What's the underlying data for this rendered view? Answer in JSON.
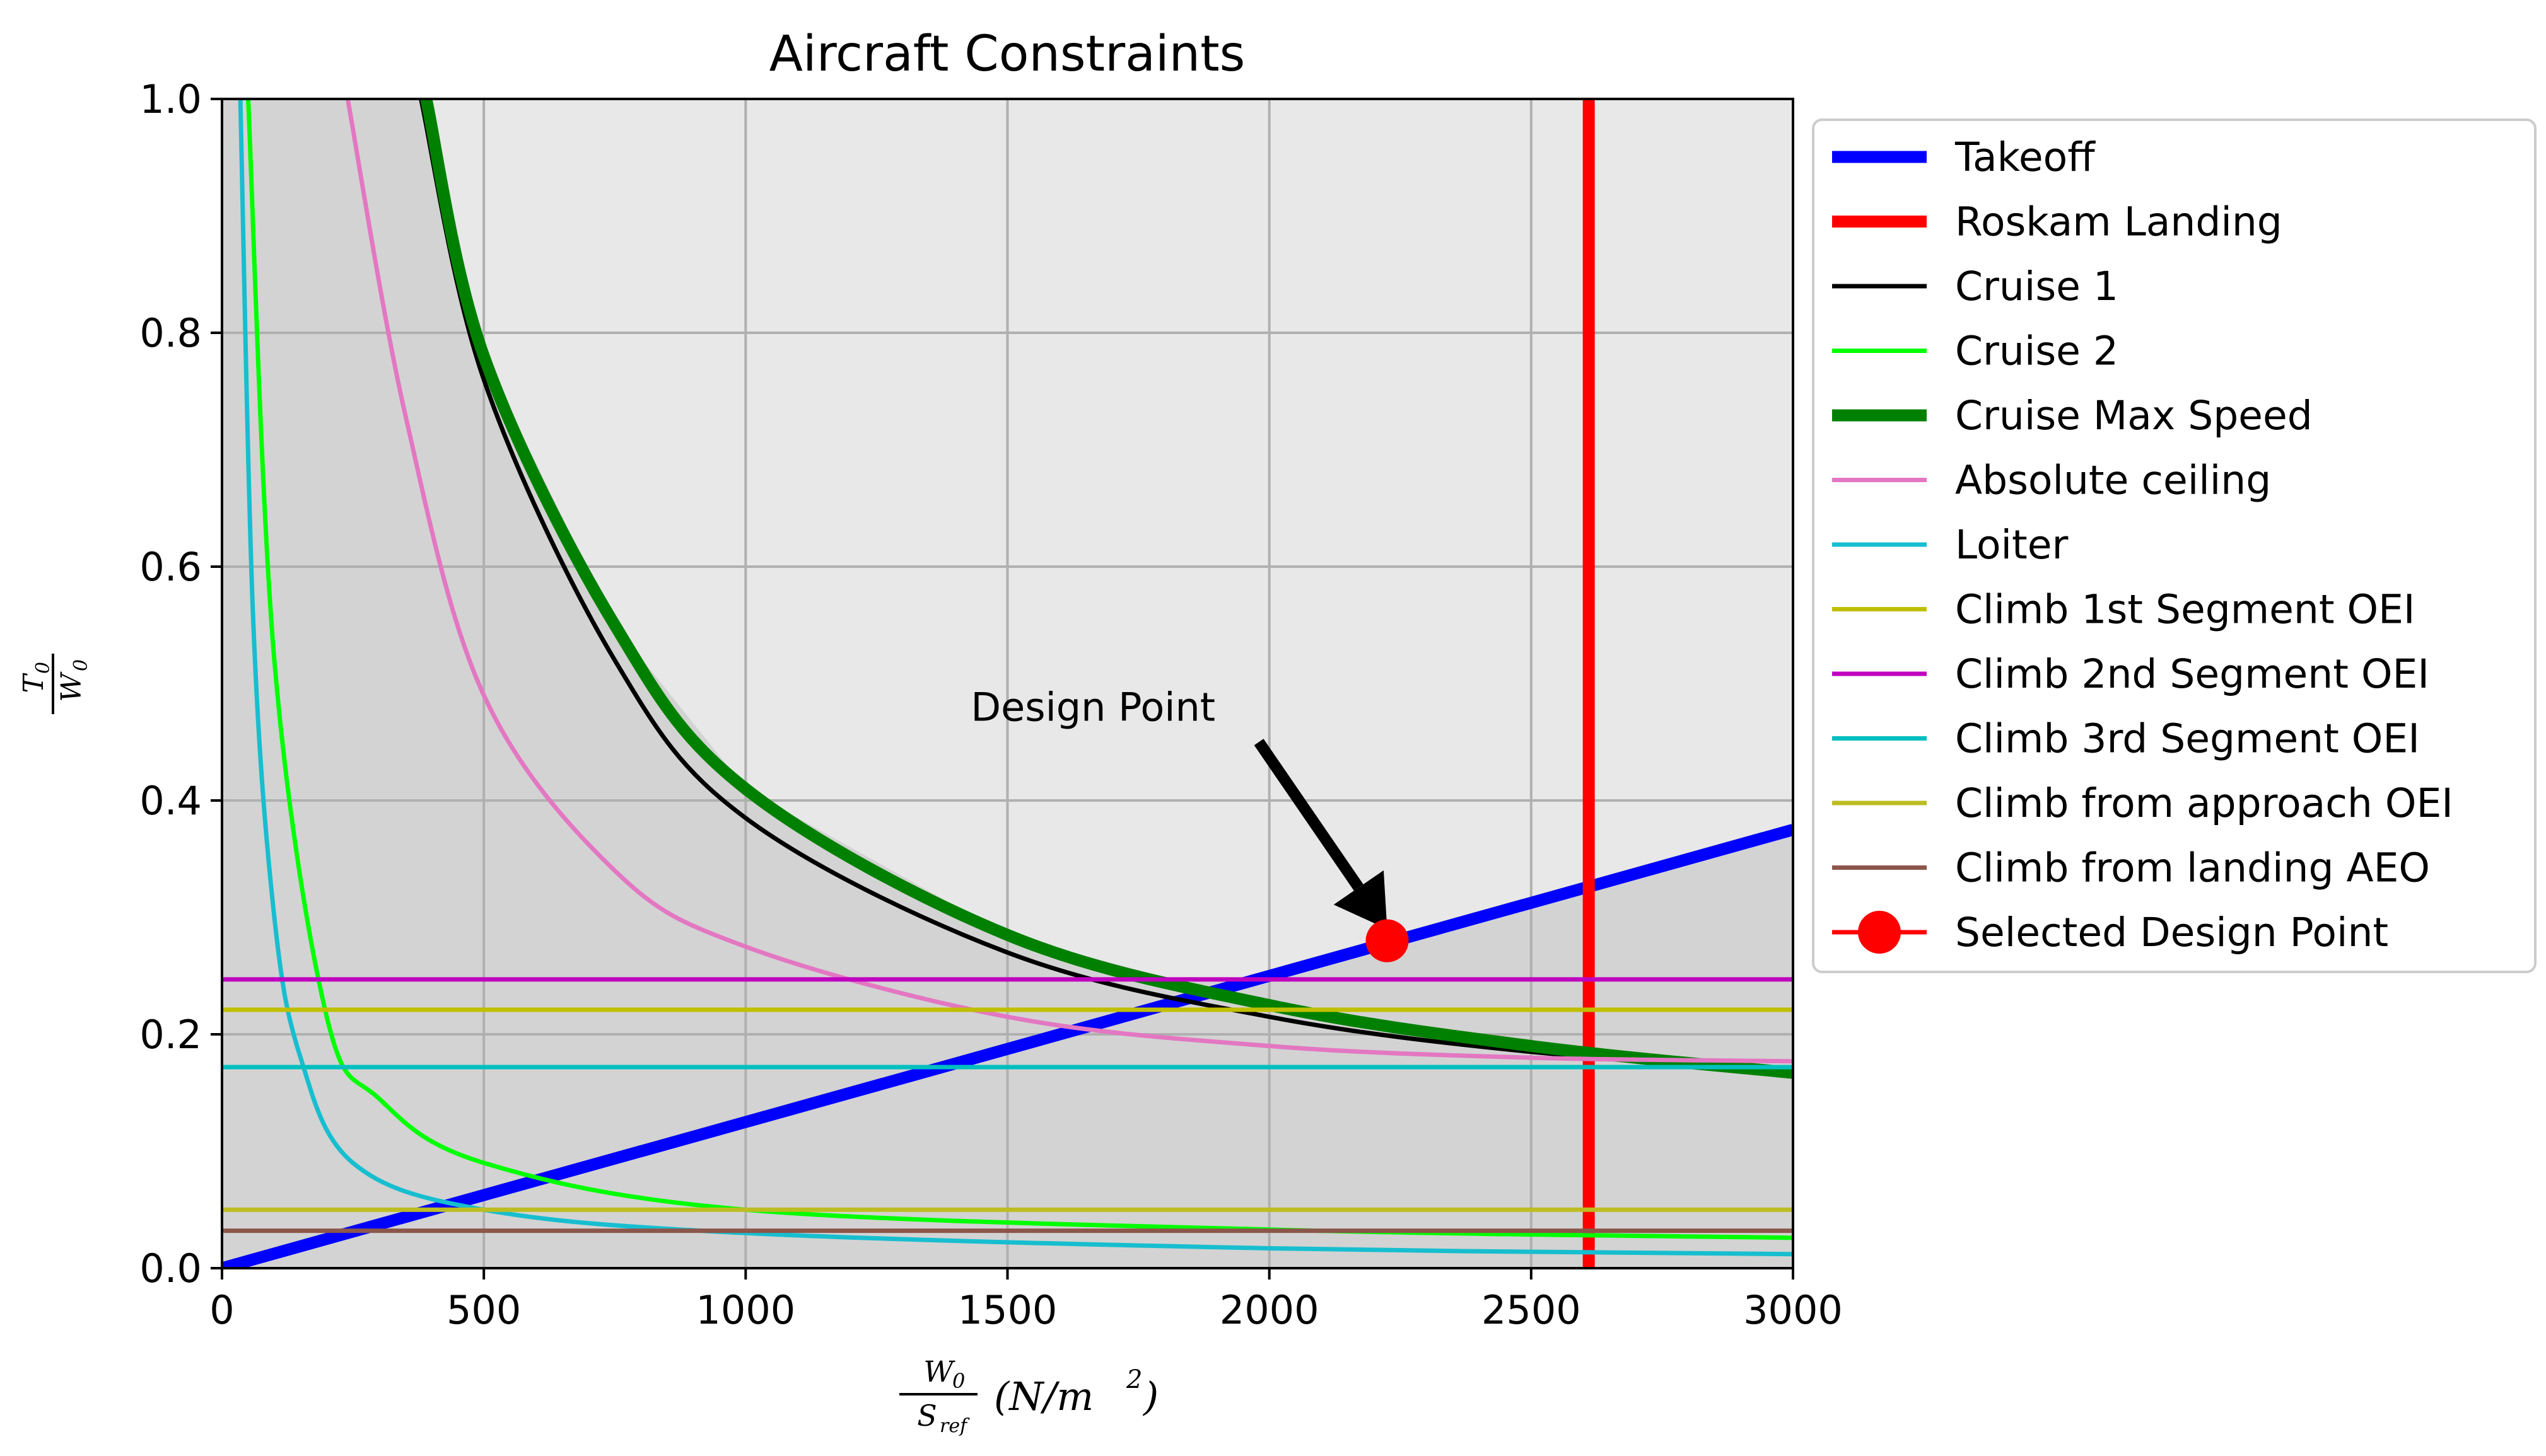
{
  "chart_data": {
    "type": "line",
    "title": "Aircraft Constraints",
    "xlabel": {
      "num": "W",
      "num_sub": "0",
      "den": "S",
      "den_sub": "ref",
      "unit_pre": "(N/m",
      "unit_sup": "2",
      "unit_post": ")"
    },
    "ylabel": {
      "num": "T",
      "num_sub": "0",
      "den": "W",
      "den_sub": "0"
    },
    "xlim": [
      0,
      3000
    ],
    "ylim": [
      0,
      1.0
    ],
    "xticks": [
      "0",
      "500",
      "1000",
      "1500",
      "2000",
      "2500",
      "3000"
    ],
    "yticks": [
      "0.0",
      "0.2",
      "0.4",
      "0.6",
      "0.8",
      "1.0"
    ],
    "grid": true,
    "legend_position": "outside-right",
    "series": [
      {
        "name": "Takeoff",
        "color": "#0000ff",
        "width": "thick",
        "kind": "linear",
        "points": [
          [
            0,
            0.0
          ],
          [
            3000,
            0.375
          ]
        ]
      },
      {
        "name": "Roskam Landing",
        "color": "#ff0000",
        "width": "thick",
        "kind": "vertical",
        "x": 2610
      },
      {
        "name": "Cruise 1",
        "color": "#000000",
        "width": "normal",
        "kind": "curve",
        "points": [
          [
            380,
            1.0
          ],
          [
            500,
            0.76
          ],
          [
            750,
            0.52
          ],
          [
            1000,
            0.385
          ],
          [
            1500,
            0.27
          ],
          [
            2000,
            0.215
          ],
          [
            2500,
            0.185
          ],
          [
            3000,
            0.17
          ]
        ]
      },
      {
        "name": "Cruise 2",
        "color": "#00ff00",
        "width": "normal",
        "kind": "curve",
        "points": [
          [
            50,
            1.0
          ],
          [
            100,
            0.52
          ],
          [
            200,
            0.215
          ],
          [
            300,
            0.145
          ],
          [
            500,
            0.09
          ],
          [
            1000,
            0.05
          ],
          [
            2000,
            0.033
          ],
          [
            3000,
            0.026
          ]
        ]
      },
      {
        "name": "Cruise Max Speed",
        "color": "#008000",
        "width": "thick",
        "kind": "curve",
        "points": [
          [
            390,
            1.0
          ],
          [
            500,
            0.78
          ],
          [
            750,
            0.55
          ],
          [
            1000,
            0.41
          ],
          [
            1500,
            0.285
          ],
          [
            2000,
            0.225
          ],
          [
            2500,
            0.19
          ],
          [
            3000,
            0.167
          ]
        ]
      },
      {
        "name": "Absolute ceiling",
        "color": "#e377c2",
        "width": "normal",
        "kind": "curve",
        "points": [
          [
            240,
            1.0
          ],
          [
            350,
            0.73
          ],
          [
            500,
            0.49
          ],
          [
            750,
            0.34
          ],
          [
            1000,
            0.275
          ],
          [
            1500,
            0.215
          ],
          [
            2000,
            0.19
          ],
          [
            2500,
            0.18
          ],
          [
            3000,
            0.177
          ]
        ]
      },
      {
        "name": "Loiter",
        "color": "#17becf",
        "width": "normal",
        "kind": "curve",
        "points": [
          [
            35,
            1.0
          ],
          [
            60,
            0.55
          ],
          [
            100,
            0.3
          ],
          [
            150,
            0.18
          ],
          [
            250,
            0.09
          ],
          [
            500,
            0.05
          ],
          [
            1000,
            0.03
          ],
          [
            2000,
            0.017
          ],
          [
            3000,
            0.012
          ]
        ]
      },
      {
        "name": "Climb 1st Segment OEI",
        "color": "#bfbf00",
        "width": "normal",
        "kind": "horizontal",
        "y": 0.221
      },
      {
        "name": "Climb 2nd Segment OEI",
        "color": "#bf00bf",
        "width": "normal",
        "kind": "horizontal",
        "y": 0.247
      },
      {
        "name": "Climb 3rd Segment OEI",
        "color": "#00bfbf",
        "width": "normal",
        "kind": "horizontal",
        "y": 0.172
      },
      {
        "name": "Climb from approach OEI",
        "color": "#bcbd22",
        "width": "normal",
        "kind": "horizontal",
        "y": 0.05
      },
      {
        "name": "Climb from landing AEO",
        "color": "#8c564b",
        "width": "normal",
        "kind": "horizontal",
        "y": 0.032
      },
      {
        "name": "Selected Design Point",
        "color": "#ff0000",
        "width": "normal",
        "kind": "marker",
        "points": [
          [
            2225,
            0.28
          ]
        ]
      }
    ],
    "annotations": [
      {
        "text": "Design Point",
        "text_at": [
          1430,
          0.48
        ],
        "arrow_from": [
          1980,
          0.45
        ],
        "arrow_to": [
          2225,
          0.29
        ]
      }
    ]
  }
}
